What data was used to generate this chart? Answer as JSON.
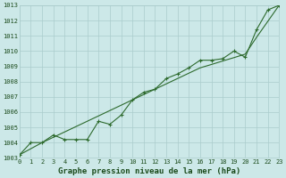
{
  "xlabel": "Graphe pression niveau de la mer (hPa)",
  "hours": [
    0,
    1,
    2,
    3,
    4,
    5,
    6,
    7,
    8,
    9,
    10,
    11,
    12,
    13,
    14,
    15,
    16,
    17,
    18,
    19,
    20,
    21,
    22,
    23
  ],
  "pressure_markers": [
    1003.2,
    1004.0,
    1004.0,
    1004.5,
    1004.2,
    1004.2,
    1004.2,
    1005.4,
    1005.2,
    1005.8,
    1006.8,
    1007.3,
    1007.5,
    1008.2,
    1008.5,
    1008.9,
    1009.4,
    1009.4,
    1009.5,
    1010.0,
    1009.6,
    1011.4,
    1012.7,
    1013.0
  ],
  "pressure_smooth": [
    1003.2,
    1003.6,
    1004.0,
    1004.35,
    1004.7,
    1005.05,
    1005.4,
    1005.75,
    1006.1,
    1006.45,
    1006.8,
    1007.15,
    1007.5,
    1007.85,
    1008.2,
    1008.55,
    1008.9,
    1009.12,
    1009.35,
    1009.57,
    1009.8,
    1010.9,
    1011.95,
    1013.0
  ],
  "ylim": [
    1003,
    1013
  ],
  "xlim": [
    0,
    23
  ],
  "yticks": [
    1003,
    1004,
    1005,
    1006,
    1007,
    1008,
    1009,
    1010,
    1011,
    1012,
    1013
  ],
  "xticks": [
    0,
    1,
    2,
    3,
    4,
    5,
    6,
    7,
    8,
    9,
    10,
    11,
    12,
    13,
    14,
    15,
    16,
    17,
    18,
    19,
    20,
    21,
    22,
    23
  ],
  "line_color": "#2d6a2d",
  "bg_color": "#cce8e8",
  "grid_color": "#aacccc",
  "label_color": "#1a4a1a",
  "xlabel_fontsize": 6.5,
  "tick_fontsize": 5.0
}
